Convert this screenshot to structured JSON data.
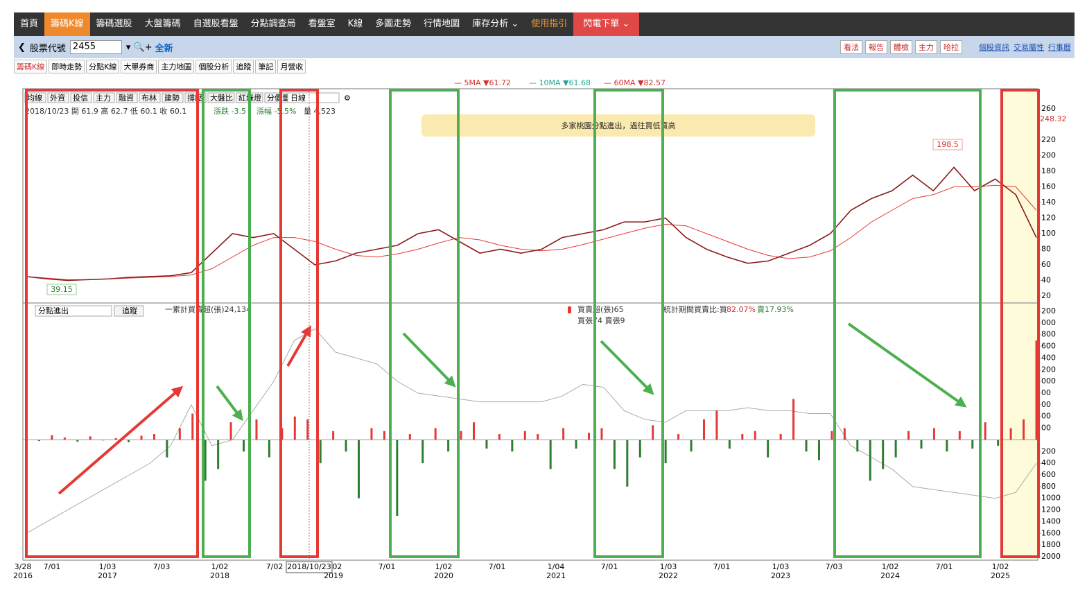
{
  "nav": {
    "items": [
      "首頁",
      "籌碼K線",
      "籌碼選股",
      "大盤籌碼",
      "自選股看盤",
      "分點調查局",
      "看盤室",
      "K線",
      "多圖走勢",
      "行情地圖",
      "庫存分析 ⌄",
      "使用指引",
      "閃電下單 ⌄"
    ]
  },
  "toolbar": {
    "label": "股票代號",
    "code": "2455",
    "refresh": "全新",
    "buttons": [
      "看法",
      "報告",
      "體檢",
      "主力",
      "哈拉"
    ],
    "links": [
      "個股資訊",
      "交易屬性",
      "行事曆"
    ]
  },
  "tabs": [
    "籌碼K線",
    "即時走勢",
    "分點K線",
    "大單券商",
    "主力地圖",
    "個股分析",
    "追蹤",
    "筆記",
    "月營收"
  ],
  "chart": {
    "legend": [
      "— 5MA ▼61.72",
      "— 10MA ▼61.68",
      "— 60MA ▼82.57"
    ],
    "tools": [
      "均線",
      "外資",
      "投信",
      "主力",
      "融資",
      "布林",
      "建勢",
      "撐壓",
      "大盤比",
      "紅綠燈",
      "分價量"
    ],
    "period": "日線",
    "info": [
      "2018/10/23 開 61.9 高 62.7 低 60.1 收 60.1",
      "漲跌 -3.5",
      "漲幅 -5.5%",
      "量 4,523"
    ],
    "annotation": "多家桃園分點進出，過往買低賣高",
    "high_label": "198.5",
    "low_label": "39.15",
    "last_price": "248.32",
    "panel2_select": "分點進出",
    "panel2_button": "追蹤",
    "panel2_info": [
      "一累計買賣超(張)24,134",
      "買賣超(張)65",
      "買張74 賣張9",
      "統計期間買賣比:買",
      "82.07%",
      "賣17.93%"
    ],
    "cursor_date": "2018/10/23",
    "x_labels": [
      [
        "3/28",
        "2016"
      ],
      [
        "7/01",
        ""
      ],
      [
        "1/03",
        "2017"
      ],
      [
        "7/03",
        ""
      ],
      [
        "1/02",
        "2018"
      ],
      [
        "7/02",
        ""
      ],
      [
        "1/02",
        "2019"
      ],
      [
        "7/01",
        ""
      ],
      [
        "1/02",
        "2020"
      ],
      [
        "7/01",
        ""
      ],
      [
        "1/04",
        "2021"
      ],
      [
        "7/01",
        ""
      ],
      [
        "1/03",
        "2022"
      ],
      [
        "7/01",
        ""
      ],
      [
        "1/03",
        "2023"
      ],
      [
        "7/03",
        ""
      ],
      [
        "1/02",
        "2024"
      ],
      [
        "7/01",
        ""
      ],
      [
        "1/02",
        "2025"
      ]
    ],
    "price_ylim": [
      20,
      260
    ],
    "price_ticks": [
      20,
      40,
      60,
      80,
      100,
      120,
      140,
      160,
      180,
      200,
      220,
      260
    ],
    "flow_ylim": [
      -2000,
      2200
    ],
    "flow_ticks": [
      {
        "value": 2200,
        "label": "200"
      },
      {
        "value": 2000,
        "label": "000"
      },
      {
        "value": 1800,
        "label": "800"
      },
      {
        "value": 1600,
        "label": "600"
      },
      {
        "value": 1400,
        "label": "400"
      },
      {
        "value": 1200,
        "label": "200"
      },
      {
        "value": 1000,
        "label": "000"
      },
      {
        "value": 800,
        "label": "00"
      },
      {
        "value": 600,
        "label": "00"
      },
      {
        "value": 400,
        "label": "00"
      },
      {
        "value": 200,
        "label": "00"
      },
      {
        "value": -200,
        "label": "200"
      },
      {
        "value": -400,
        "label": "400"
      },
      {
        "value": -600,
        "label": "600"
      },
      {
        "value": -800,
        "label": "800"
      },
      {
        "value": -1000,
        "label": "1000"
      },
      {
        "value": -1200,
        "label": "1200"
      },
      {
        "value": -1400,
        "label": "1400"
      },
      {
        "value": -1600,
        "label": "1600"
      },
      {
        "value": -1800,
        "label": "1800"
      },
      {
        "value": -2000,
        "label": "2000"
      }
    ],
    "price": [
      45,
      42,
      40,
      41,
      42,
      44,
      45,
      46,
      50,
      75,
      100,
      95,
      100,
      80,
      60,
      65,
      75,
      80,
      85,
      100,
      105,
      90,
      75,
      80,
      75,
      80,
      95,
      100,
      105,
      115,
      115,
      120,
      95,
      80,
      70,
      62,
      65,
      75,
      85,
      100,
      130,
      145,
      155,
      175,
      155,
      185,
      155,
      170,
      150,
      95
    ],
    "ma60": [
      45,
      43,
      41,
      41,
      42,
      43,
      44,
      45,
      47,
      55,
      70,
      85,
      95,
      95,
      90,
      80,
      72,
      70,
      74,
      80,
      88,
      95,
      92,
      85,
      80,
      78,
      80,
      86,
      93,
      100,
      107,
      112,
      110,
      100,
      90,
      80,
      72,
      68,
      70,
      78,
      95,
      115,
      130,
      145,
      150,
      160,
      160,
      162,
      160,
      130
    ],
    "cumulative": [
      -1600,
      -1400,
      -1200,
      -1000,
      -800,
      -600,
      -400,
      -100,
      600,
      -100,
      0,
      500,
      1000,
      1700,
      1900,
      1500,
      1400,
      1300,
      1000,
      800,
      750,
      700,
      650,
      650,
      650,
      650,
      750,
      950,
      900,
      500,
      350,
      300,
      500,
      500,
      500,
      550,
      500,
      500,
      450,
      450,
      -100,
      -300,
      -500,
      -800,
      -850,
      -900,
      -950,
      -1000,
      -900,
      -400
    ],
    "net": [
      50,
      -20,
      80,
      40,
      -30,
      60,
      -10,
      30,
      -40,
      70,
      100,
      -300,
      200,
      450,
      -700,
      -500,
      300,
      -200,
      350,
      -300,
      200,
      400,
      350,
      -400,
      150,
      -200,
      -1000,
      200,
      150,
      -1300,
      100,
      -400,
      200,
      -200,
      150,
      300,
      -150,
      100,
      -200,
      150,
      100,
      -500,
      200,
      -150,
      120,
      200,
      -500,
      -800,
      -300,
      250,
      -400,
      100,
      -200,
      350,
      500,
      -150,
      100,
      150,
      -300,
      100,
      700,
      -200,
      -350,
      150,
      200,
      -200,
      -700,
      -500,
      -300,
      150,
      -150,
      200,
      -200,
      150,
      -150,
      300,
      -100,
      200,
      350,
      1700
    ]
  }
}
